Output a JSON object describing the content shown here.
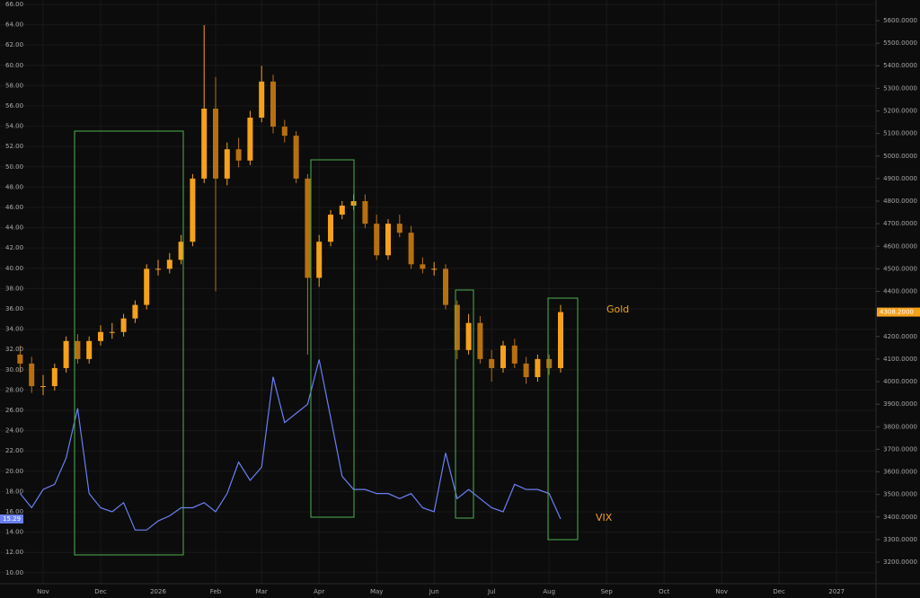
{
  "chart_data": {
    "type": "candlestick",
    "annotations": [
      "Gold",
      "VIX"
    ],
    "categories": [
      null,
      null,
      "Nov",
      null,
      null,
      null,
      null,
      "Dec",
      null,
      null,
      null,
      null,
      "2026",
      null,
      null,
      null,
      null,
      "Feb",
      null,
      null,
      null,
      "Mar",
      null,
      null,
      null,
      null,
      "Apr",
      null,
      null,
      null,
      null,
      "May",
      null,
      null,
      null,
      null,
      "Jun",
      null,
      null,
      null,
      null,
      "Jul",
      null,
      null,
      null,
      null,
      "Aug",
      null,
      null,
      null,
      null,
      "Sep",
      null,
      null,
      null,
      null,
      "Oct",
      null,
      null,
      null,
      null,
      "Nov",
      null,
      null,
      null,
      null,
      "Dec",
      null,
      null,
      null,
      null,
      "2027",
      null,
      null,
      null
    ],
    "ylim": [
      8.92,
      66.44
    ],
    "yticks": [
      {
        "value": 10,
        "label": "10.00"
      },
      {
        "value": 12,
        "label": "12.00"
      },
      {
        "value": 14,
        "label": "14.00"
      },
      {
        "value": 16,
        "label": "16.00"
      },
      {
        "value": 18,
        "label": "18.00"
      },
      {
        "value": 20,
        "label": "20.00"
      },
      {
        "value": 22,
        "label": "22.00"
      },
      {
        "value": 24,
        "label": "24.00"
      },
      {
        "value": 26,
        "label": "26.00"
      },
      {
        "value": 28,
        "label": "28.00"
      },
      {
        "value": 30,
        "label": "30.00"
      },
      {
        "value": 32,
        "label": "32.00"
      },
      {
        "value": 34,
        "label": "34.00"
      },
      {
        "value": 36,
        "label": "36.00"
      },
      {
        "value": 38,
        "label": "38.00"
      },
      {
        "value": 40,
        "label": "40.00"
      },
      {
        "value": 42,
        "label": "42.00"
      },
      {
        "value": 44,
        "label": "44.00"
      },
      {
        "value": 46,
        "label": "46.00"
      },
      {
        "value": 48,
        "label": "48.00"
      },
      {
        "value": 50,
        "label": "50.00"
      },
      {
        "value": 52,
        "label": "52.00"
      },
      {
        "value": 54,
        "label": "54.00"
      },
      {
        "value": 56,
        "label": "56.00"
      },
      {
        "value": 58,
        "label": "58.00"
      },
      {
        "value": 60,
        "label": "60.00"
      },
      {
        "value": 62,
        "label": "62.00"
      },
      {
        "value": 64,
        "label": "64.00"
      },
      {
        "value": 66,
        "label": "66.00"
      }
    ],
    "y2lim": [
      3104.6,
      5691.5
    ],
    "y2ticks": [
      {
        "value": 3200,
        "label": "3200.0000"
      },
      {
        "value": 3300,
        "label": "3300.0000"
      },
      {
        "value": 3400,
        "label": "3400.0000"
      },
      {
        "value": 3500,
        "label": "3500.0000"
      },
      {
        "value": 3600,
        "label": "3600.0000"
      },
      {
        "value": 3700,
        "label": "3700.0000"
      },
      {
        "value": 3800,
        "label": "3800.0000"
      },
      {
        "value": 3900,
        "label": "3900.0000"
      },
      {
        "value": 4000,
        "label": "4000.0000"
      },
      {
        "value": 4100,
        "label": "4100.0000"
      },
      {
        "value": 4200,
        "label": "4200.0000"
      },
      {
        "value": 4300,
        "label": "4300.0000"
      },
      {
        "value": 4400,
        "label": "4400.0000"
      },
      {
        "value": 4500,
        "label": "4500.0000"
      },
      {
        "value": 4600,
        "label": "4600.0000"
      },
      {
        "value": 4700,
        "label": "4700.0000"
      },
      {
        "value": 4800,
        "label": "4800.0000"
      },
      {
        "value": 4900,
        "label": "4900.0000"
      },
      {
        "value": 5000,
        "label": "5000.0000"
      },
      {
        "value": 5100,
        "label": "5100.0000"
      },
      {
        "value": 5200,
        "label": "5200.0000"
      },
      {
        "value": 5300,
        "label": "5300.0000"
      },
      {
        "value": 5400,
        "label": "5400.0000"
      },
      {
        "value": 5500,
        "label": "5500.0000"
      },
      {
        "value": 5600,
        "label": "5600.0000"
      }
    ],
    "grid": true,
    "series": [
      {
        "type": "candlestick",
        "axis": "y2",
        "color": "#f5a11c",
        "down_color": "#b8700f",
        "open": [
          4120,
          4080,
          3980,
          3980,
          4060,
          4180,
          4100,
          4180,
          4220,
          4220,
          4280,
          4340,
          4500,
          4500,
          4540,
          4620,
          4900,
          5210,
          4900,
          5030,
          4980,
          5170,
          5330,
          5130,
          5090,
          4900,
          4460,
          4620,
          4740,
          4780,
          4800,
          4700,
          4560,
          4700,
          4660,
          4520,
          4500,
          4500,
          4340,
          4140,
          4260,
          4100,
          4060,
          4160,
          4080,
          4020,
          4100,
          4060,
          null,
          null,
          null,
          null,
          null,
          null,
          null,
          null,
          null,
          null,
          null,
          null,
          null,
          null,
          null,
          null,
          null,
          null,
          null,
          null,
          null,
          null,
          null,
          null,
          null,
          null,
          null
        ],
        "high": [
          4160,
          4110,
          4030,
          4080,
          4200,
          4210,
          4200,
          4250,
          4260,
          4300,
          4360,
          4520,
          4540,
          4570,
          4650,
          4920,
          5580,
          5350,
          5060,
          5080,
          5200,
          5400,
          5360,
          5160,
          5110,
          4920,
          4650,
          4760,
          4800,
          4830,
          4830,
          4740,
          4720,
          4740,
          4690,
          4550,
          4530,
          4520,
          4360,
          4300,
          4290,
          4140,
          4180,
          4190,
          4110,
          4120,
          4120,
          4340,
          null,
          null,
          null,
          null,
          null,
          null,
          null,
          null,
          null,
          null,
          null,
          null,
          null,
          null,
          null,
          null,
          null,
          null,
          null,
          null,
          null,
          null,
          null,
          null,
          null,
          null,
          null
        ],
        "low": [
          4040,
          3950,
          3940,
          3960,
          4040,
          4080,
          4080,
          4160,
          4190,
          4200,
          4260,
          4320,
          4470,
          4480,
          4520,
          4600,
          4880,
          4400,
          4870,
          4950,
          4960,
          5150,
          5100,
          5060,
          4880,
          4120,
          4420,
          4600,
          4720,
          4760,
          4680,
          4540,
          4540,
          4640,
          4500,
          4480,
          4470,
          4320,
          4100,
          4120,
          4080,
          4000,
          4040,
          4060,
          3990,
          4000,
          4030,
          4040,
          null,
          null,
          null,
          null,
          null,
          null,
          null,
          null,
          null,
          null,
          null,
          null,
          null,
          null,
          null,
          null,
          null,
          null,
          null,
          null,
          null,
          null,
          null,
          null,
          null,
          null,
          null
        ],
        "close": [
          4080,
          3980,
          3980,
          4060,
          4180,
          4100,
          4180,
          4220,
          4220,
          4280,
          4340,
          4500,
          4500,
          4540,
          4620,
          4900,
          5210,
          4900,
          5030,
          4980,
          5170,
          5330,
          5130,
          5090,
          4900,
          4460,
          4620,
          4740,
          4780,
          4800,
          4700,
          4560,
          4700,
          4660,
          4520,
          4500,
          4500,
          4340,
          4140,
          4260,
          4100,
          4060,
          4160,
          4080,
          4020,
          4100,
          4060,
          4308.2,
          null,
          null,
          null,
          null,
          null,
          null,
          null,
          null,
          null,
          null,
          null,
          null,
          null,
          null,
          null,
          null,
          null,
          null,
          null,
          null,
          null,
          null,
          null,
          null,
          null,
          null,
          null
        ],
        "value_labels": [
          null,
          null,
          null,
          null,
          null,
          null,
          null,
          null,
          null,
          null,
          null,
          null,
          null,
          null,
          null,
          null,
          null,
          null,
          null,
          null,
          null,
          null,
          null,
          null,
          null,
          null,
          null,
          null,
          null,
          null,
          null,
          null,
          null,
          null,
          null,
          null,
          null,
          null,
          null,
          null,
          null,
          null,
          null,
          null,
          null,
          null,
          null,
          "4308.2000",
          null,
          null,
          null,
          null,
          null,
          null,
          null,
          null,
          null,
          null,
          null,
          null,
          null,
          null,
          null,
          null,
          null,
          null,
          null,
          null,
          null,
          null,
          null,
          null,
          null,
          null,
          null
        ]
      },
      {
        "type": "line",
        "axis": "y",
        "color": "#6b7ff2",
        "values": [
          17.8,
          16.4,
          18.2,
          18.7,
          21.3,
          26.2,
          17.8,
          16.4,
          16.0,
          16.9,
          14.2,
          14.2,
          15.1,
          15.6,
          16.4,
          16.4,
          16.9,
          16.0,
          17.8,
          20.9,
          19.1,
          20.4,
          29.3,
          24.8,
          25.7,
          26.6,
          31.0,
          25.3,
          19.5,
          18.2,
          18.2,
          17.8,
          17.8,
          17.3,
          17.8,
          16.4,
          16.0,
          21.8,
          17.3,
          18.2,
          17.3,
          16.4,
          16.0,
          18.7,
          18.2,
          18.2,
          17.8,
          15.29,
          null,
          null,
          null,
          null,
          null,
          null,
          null,
          null,
          null,
          null,
          null,
          null,
          null,
          null,
          null,
          null,
          null,
          null,
          null,
          null,
          null,
          null,
          null,
          null,
          null,
          null,
          null
        ],
        "value_labels": [
          null,
          null,
          null,
          null,
          null,
          null,
          null,
          null,
          null,
          null,
          null,
          null,
          null,
          null,
          null,
          null,
          null,
          null,
          null,
          null,
          null,
          null,
          null,
          null,
          null,
          null,
          null,
          null,
          null,
          null,
          null,
          null,
          null,
          null,
          null,
          null,
          null,
          null,
          null,
          null,
          null,
          null,
          null,
          null,
          null,
          null,
          null,
          "15.29",
          null,
          null,
          null,
          null,
          null,
          null,
          null,
          null,
          null,
          null,
          null,
          null,
          null,
          null,
          null,
          null,
          null,
          null,
          null,
          null,
          null,
          null,
          null,
          null,
          null,
          null,
          null
        ]
      }
    ]
  }
}
